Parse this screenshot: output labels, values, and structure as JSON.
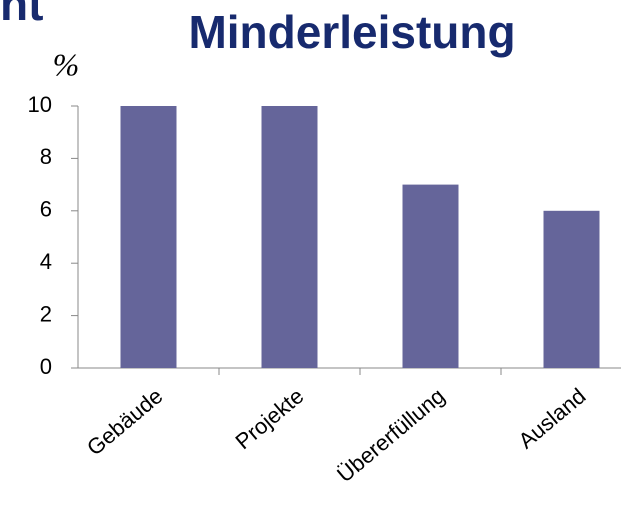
{
  "chart_data": {
    "type": "bar",
    "title": "Minderleistung",
    "annotation": "nt",
    "ylabel": "%",
    "categories": [
      "Gebäude",
      "Projekte",
      "Übererfüllung",
      "Ausland"
    ],
    "values": [
      10,
      10,
      7,
      6
    ],
    "color": "#65659a",
    "ylim": [
      0,
      10
    ],
    "yticks": [
      0,
      2,
      4,
      6,
      8,
      10
    ],
    "grid": false
  }
}
